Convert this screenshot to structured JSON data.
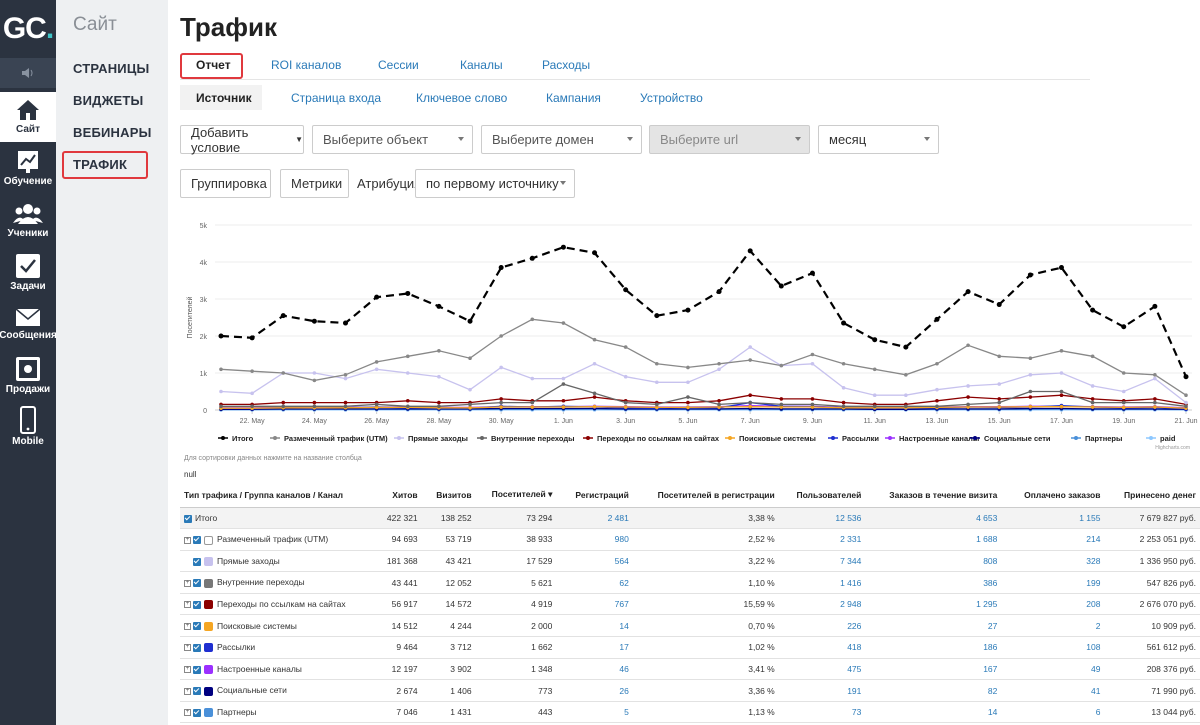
{
  "app": {
    "logo_text": "GC",
    "logo_dot": "."
  },
  "leftnav": {
    "items": [
      {
        "label": "Сайт",
        "icon": "home-icon",
        "active": true
      },
      {
        "label": "Обучение",
        "icon": "chart-board-icon"
      },
      {
        "label": "Ученики",
        "icon": "users-icon"
      },
      {
        "label": "Задачи",
        "icon": "checkbox-icon"
      },
      {
        "label": "Сообщения",
        "icon": "envelope-icon"
      },
      {
        "label": "Продажи",
        "icon": "safe-icon"
      },
      {
        "label": "Mobile",
        "icon": "phone-icon"
      }
    ],
    "volume_icon": "volume-icon"
  },
  "subnav": {
    "title": "Сайт",
    "items": [
      "СТРАНИЦЫ",
      "ВИДЖЕТЫ",
      "ВЕБИНАРЫ",
      "ТРАФИК"
    ]
  },
  "page": {
    "title": "Трафик"
  },
  "tabs": [
    "Отчет",
    "ROI каналов",
    "Сессии",
    "Каналы",
    "Расходы"
  ],
  "subtabs": [
    "Источник",
    "Страница входа",
    "Ключевое слово",
    "Кампания",
    "Устройство"
  ],
  "filters": {
    "add_condition": "Добавить условие",
    "object_placeholder": "Выберите объект",
    "domain_placeholder": "Выберите домен",
    "url_placeholder": "Выберите url",
    "period": "месяц",
    "grouping": "Группировка",
    "metrics": "Метрики",
    "attribution_label": "Атрибуция",
    "attribution_value": "по первому источнику"
  },
  "chart_data": {
    "type": "line",
    "ylabel": "Посетителей",
    "ylim": [
      0,
      5000
    ],
    "yticks": [
      "0",
      "1k",
      "2k",
      "3k",
      "4k",
      "5k"
    ],
    "xticks": [
      "22. May",
      "24. May",
      "26. May",
      "28. May",
      "30. May",
      "1. Jun",
      "3. Jun",
      "5. Jun",
      "7. Jun",
      "9. Jun",
      "11. Jun",
      "13. Jun",
      "15. Jun",
      "17. Jun",
      "19. Jun",
      "21. Jun"
    ],
    "credit": "Highcharts.com",
    "series": [
      {
        "name": "Итого",
        "color": "#000000",
        "dash": true,
        "values": [
          2000,
          1950,
          2550,
          2400,
          2350,
          3050,
          3150,
          2800,
          2400,
          3850,
          4100,
          4400,
          4250,
          3250,
          2550,
          2700,
          3200,
          4300,
          3350,
          3700,
          2350,
          1900,
          1700,
          2450,
          3200,
          2850,
          3650,
          3850,
          2700,
          2250,
          2800,
          900
        ]
      },
      {
        "name": "Размеченный трафик (UTM)",
        "color": "#888888",
        "values": [
          1100,
          1050,
          1000,
          800,
          950,
          1300,
          1450,
          1600,
          1400,
          2000,
          2450,
          2350,
          1900,
          1700,
          1250,
          1150,
          1250,
          1350,
          1200,
          1500,
          1250,
          1100,
          950,
          1250,
          1750,
          1450,
          1400,
          1600,
          1450,
          1000,
          950,
          400
        ]
      },
      {
        "name": "Прямые заходы",
        "color": "#c7c2ee",
        "values": [
          500,
          450,
          1000,
          1000,
          850,
          1100,
          1000,
          900,
          550,
          1150,
          850,
          850,
          1250,
          900,
          750,
          750,
          1100,
          1700,
          1200,
          1250,
          600,
          400,
          400,
          550,
          650,
          700,
          950,
          1000,
          650,
          500,
          850,
          200
        ]
      },
      {
        "name": "Внутренние переходы",
        "color": "#666666",
        "values": [
          100,
          100,
          100,
          100,
          100,
          150,
          100,
          100,
          150,
          200,
          200,
          700,
          450,
          200,
          150,
          350,
          150,
          200,
          150,
          150,
          100,
          100,
          100,
          100,
          150,
          200,
          500,
          500,
          200,
          200,
          200,
          100
        ]
      },
      {
        "name": "Переходы по ссылкам на сайтах",
        "color": "#8b0000",
        "values": [
          150,
          150,
          200,
          200,
          200,
          200,
          250,
          200,
          200,
          300,
          250,
          250,
          350,
          250,
          200,
          200,
          250,
          400,
          300,
          300,
          200,
          150,
          150,
          250,
          350,
          300,
          350,
          400,
          300,
          250,
          300,
          150
        ]
      },
      {
        "name": "Поисковые системы",
        "color": "#f5a623",
        "values": [
          50,
          50,
          60,
          60,
          60,
          70,
          70,
          60,
          60,
          80,
          80,
          80,
          90,
          80,
          70,
          70,
          80,
          90,
          80,
          80,
          60,
          60,
          60,
          70,
          80,
          80,
          90,
          90,
          80,
          70,
          80,
          50
        ]
      },
      {
        "name": "Рассылки",
        "color": "#1f2fd0",
        "values": [
          50,
          40,
          60,
          50,
          60,
          80,
          60,
          50,
          50,
          100,
          80,
          100,
          80,
          60,
          50,
          70,
          60,
          200,
          100,
          90,
          60,
          50,
          50,
          60,
          80,
          70,
          80,
          120,
          80,
          60,
          70,
          30
        ]
      },
      {
        "name": "Настроенные каналы",
        "color": "#9b30ff",
        "values": [
          60,
          60,
          70,
          70,
          70,
          80,
          80,
          70,
          70,
          90,
          90,
          90,
          100,
          90,
          80,
          80,
          90,
          120,
          100,
          100,
          70,
          70,
          70,
          80,
          90,
          90,
          100,
          100,
          90,
          80,
          90,
          60
        ]
      },
      {
        "name": "Социальные сети",
        "color": "#000080",
        "values": [
          20,
          20,
          30,
          30,
          30,
          30,
          30,
          30,
          30,
          40,
          40,
          40,
          40,
          30,
          30,
          30,
          30,
          40,
          30,
          30,
          30,
          20,
          20,
          30,
          30,
          30,
          40,
          40,
          30,
          30,
          30,
          20
        ]
      },
      {
        "name": "Партнеры",
        "color": "#4a90d9",
        "values": [
          10,
          10,
          15,
          15,
          15,
          20,
          20,
          15,
          15,
          20,
          20,
          20,
          25,
          20,
          15,
          15,
          20,
          25,
          20,
          20,
          15,
          15,
          15,
          15,
          20,
          20,
          20,
          25,
          20,
          15,
          20,
          10
        ]
      },
      {
        "name": "paid",
        "color": "#8ec8ff",
        "values": [
          5,
          5,
          5,
          5,
          5,
          5,
          5,
          5,
          5,
          5,
          5,
          5,
          5,
          5,
          5,
          5,
          5,
          5,
          5,
          5,
          5,
          5,
          5,
          5,
          5,
          5,
          5,
          5,
          5,
          5,
          5,
          5
        ]
      }
    ]
  },
  "sort_hint": "Для сортировки данных нажмите на название столбца",
  "null_text": "null",
  "table": {
    "headers": [
      "Тип трафика / Группа каналов / Канал",
      "Хитов",
      "Визитов",
      "Посетителей ▾",
      "Регистраций",
      "Посетителей в регистрации",
      "Пользователей",
      "Заказов в течение визита",
      "Оплачено заказов",
      "Принесено денег"
    ],
    "rows": [
      {
        "name": "Итого",
        "icon_color": "",
        "expand": false,
        "hits": "422 321",
        "visits": "138 252",
        "visitors": "73 294",
        "regs": "2 481",
        "conv": "3,38 %",
        "users": "12 536",
        "orders": "4 653",
        "paid": "1 155",
        "money": "7 679 827 руб."
      },
      {
        "name": "Размеченный трафик (UTM)",
        "icon_color": "#ffffff",
        "expand": true,
        "hits": "94 693",
        "visits": "53 719",
        "visitors": "38 933",
        "regs": "980",
        "conv": "2,52 %",
        "users": "2 331",
        "orders": "1 688",
        "paid": "214",
        "money": "2 253 051 руб."
      },
      {
        "name": "Прямые заходы",
        "icon_color": "#c7c2ee",
        "expand": false,
        "hits": "181 368",
        "visits": "43 421",
        "visitors": "17 529",
        "regs": "564",
        "conv": "3,22 %",
        "users": "7 344",
        "orders": "808",
        "paid": "328",
        "money": "1 336 950 руб."
      },
      {
        "name": "Внутренние переходы",
        "icon_color": "#777777",
        "expand": true,
        "hits": "43 441",
        "visits": "12 052",
        "visitors": "5 621",
        "regs": "62",
        "conv": "1,10 %",
        "users": "1 416",
        "orders": "386",
        "paid": "199",
        "money": "547 826 руб."
      },
      {
        "name": "Переходы по ссылкам на сайтах",
        "icon_color": "#8b0000",
        "expand": true,
        "hits": "56 917",
        "visits": "14 572",
        "visitors": "4 919",
        "regs": "767",
        "conv": "15,59 %",
        "users": "2 948",
        "orders": "1 295",
        "paid": "208",
        "money": "2 676 070 руб."
      },
      {
        "name": "Поисковые системы",
        "icon_color": "#f5a623",
        "expand": true,
        "hits": "14 512",
        "visits": "4 244",
        "visitors": "2 000",
        "regs": "14",
        "conv": "0,70 %",
        "users": "226",
        "orders": "27",
        "paid": "2",
        "money": "10 909 руб."
      },
      {
        "name": "Рассылки",
        "icon_color": "#1f2fd0",
        "expand": true,
        "hits": "9 464",
        "visits": "3 712",
        "visitors": "1 662",
        "regs": "17",
        "conv": "1,02 %",
        "users": "418",
        "orders": "186",
        "paid": "108",
        "money": "561 612 руб."
      },
      {
        "name": "Настроенные каналы",
        "icon_color": "#9b30ff",
        "expand": true,
        "hits": "12 197",
        "visits": "3 902",
        "visitors": "1 348",
        "regs": "46",
        "conv": "3,41 %",
        "users": "475",
        "orders": "167",
        "paid": "49",
        "money": "208 376 руб."
      },
      {
        "name": "Социальные сети",
        "icon_color": "#000080",
        "expand": true,
        "hits": "2 674",
        "visits": "1 406",
        "visitors": "773",
        "regs": "26",
        "conv": "3,36 %",
        "users": "191",
        "orders": "82",
        "paid": "41",
        "money": "71 990 руб."
      },
      {
        "name": "Партнеры",
        "icon_color": "#4a90d9",
        "expand": true,
        "hits": "7 046",
        "visits": "1 431",
        "visitors": "443",
        "regs": "5",
        "conv": "1,13 %",
        "users": "73",
        "orders": "14",
        "paid": "6",
        "money": "13 044 руб."
      }
    ]
  }
}
